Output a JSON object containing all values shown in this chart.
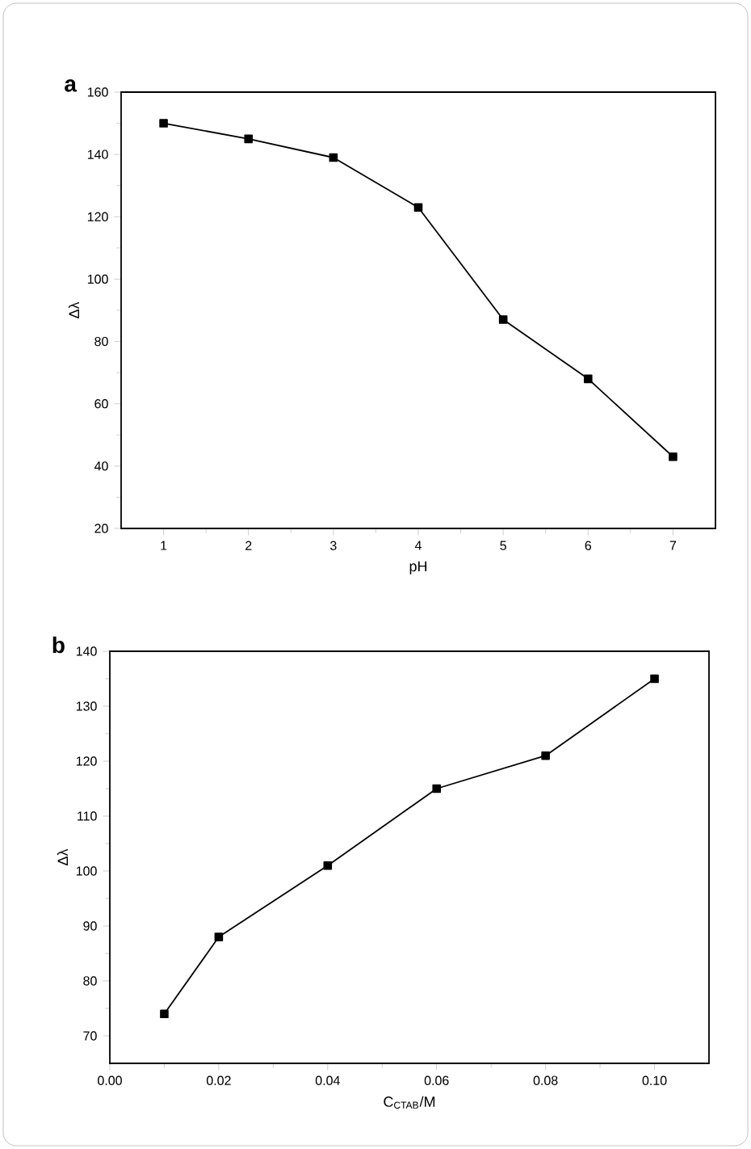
{
  "chart_data": [
    {
      "type": "line",
      "title": "a",
      "xlabel": "pH",
      "ylabel": "Δλ",
      "marker": "square",
      "line_style": "solid",
      "color": "#000000",
      "x": [
        1,
        2,
        3,
        4,
        5,
        6,
        7
      ],
      "values": [
        150,
        145,
        139,
        123,
        87,
        68,
        43
      ],
      "xlim": [
        0.5,
        7.5
      ],
      "ylim": [
        20,
        160
      ],
      "xticks": [
        1,
        2,
        3,
        4,
        5,
        6,
        7
      ],
      "yticks": [
        20,
        40,
        60,
        80,
        100,
        120,
        140,
        160
      ]
    },
    {
      "type": "line",
      "title": "b",
      "xlabel": "C$_{CTAB}$/M",
      "ylabel": "Δλ",
      "marker": "square",
      "line_style": "solid",
      "color": "#000000",
      "x": [
        0.01,
        0.02,
        0.04,
        0.06,
        0.08,
        0.1
      ],
      "values": [
        74,
        88,
        101,
        115,
        121,
        135
      ],
      "xlim": [
        0,
        0.11
      ],
      "ylim": [
        65,
        140
      ],
      "xticks": [
        {
          "value": 0,
          "label": "0.00"
        },
        {
          "value": 0.02,
          "label": "0.02"
        },
        {
          "value": 0.04,
          "label": "0.04"
        },
        {
          "value": 0.06,
          "label": "0.06"
        },
        {
          "value": 0.08,
          "label": "0.08"
        },
        {
          "value": 0.1,
          "label": "0.10"
        }
      ],
      "yticks": [
        70,
        80,
        90,
        100,
        110,
        120,
        130,
        140
      ]
    }
  ]
}
